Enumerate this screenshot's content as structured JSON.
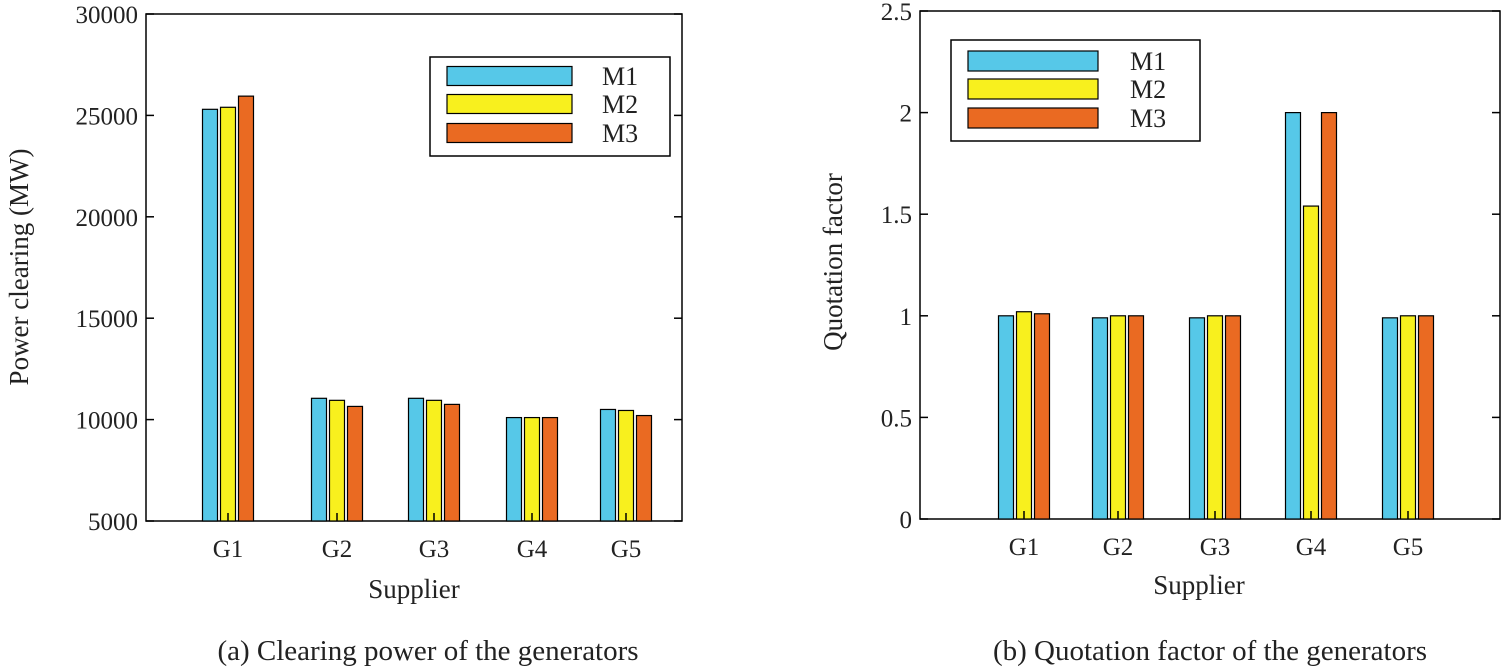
{
  "colors": {
    "M1": "#56c8e8",
    "M2": "#f8f01e",
    "M3": "#ea6a22",
    "axis": "#000000"
  },
  "chart_data": [
    {
      "type": "bar",
      "caption": "(a) Clearing power of the generators",
      "xlabel": "Supplier",
      "ylabel": "Power clearing (MW)",
      "categories": [
        "G1",
        "G2",
        "G3",
        "G4",
        "G5"
      ],
      "ylim": [
        5000,
        30000
      ],
      "yticks": [
        5000,
        10000,
        15000,
        20000,
        25000,
        30000
      ],
      "ytick_labels": [
        "5000",
        "10000",
        "15000",
        "20000",
        "25000",
        "30000"
      ],
      "legend_position": "top-right",
      "series": [
        {
          "name": "M1",
          "values": [
            25300,
            11050,
            11050,
            10100,
            10500
          ]
        },
        {
          "name": "M2",
          "values": [
            25400,
            10950,
            10950,
            10100,
            10450
          ]
        },
        {
          "name": "M3",
          "values": [
            25950,
            10650,
            10750,
            10100,
            10200
          ]
        }
      ]
    },
    {
      "type": "bar",
      "caption": "(b) Quotation factor of the generators",
      "xlabel": "Supplier",
      "ylabel": "Quotation factor",
      "categories": [
        "G1",
        "G2",
        "G3",
        "G4",
        "G5"
      ],
      "ylim": [
        0,
        2.5
      ],
      "yticks": [
        0,
        0.5,
        1,
        1.5,
        2,
        2.5
      ],
      "ytick_labels": [
        "0",
        "0.5",
        "1",
        "1.5",
        "2",
        "2.5"
      ],
      "legend_position": "top-left",
      "series": [
        {
          "name": "M1",
          "values": [
            1.0,
            0.99,
            0.99,
            2.0,
            0.99
          ]
        },
        {
          "name": "M2",
          "values": [
            1.02,
            1.0,
            1.0,
            1.54,
            1.0
          ]
        },
        {
          "name": "M3",
          "values": [
            1.01,
            1.0,
            1.0,
            2.0,
            1.0
          ]
        }
      ]
    }
  ]
}
